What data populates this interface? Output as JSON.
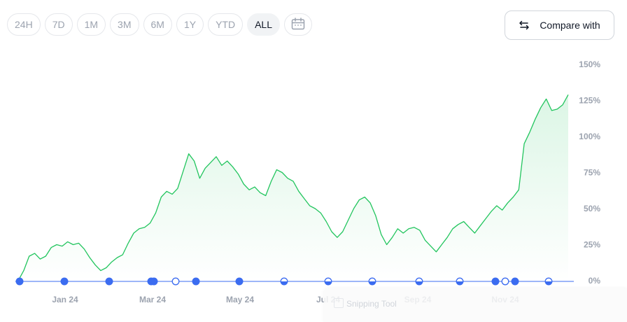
{
  "time_ranges": [
    "24H",
    "7D",
    "1M",
    "3M",
    "6M",
    "1Y",
    "YTD",
    "ALL"
  ],
  "active_range": "ALL",
  "compare_button": {
    "label": "Compare with",
    "icon": "swap-arrows-icon"
  },
  "calendar_button": {
    "icon": "calendar-icon"
  },
  "overlay": {
    "label": "Snipping Tool",
    "icon": "snipping-tool-icon"
  },
  "colors": {
    "line": "#22c55e",
    "fill": "#22c55e",
    "marker": "#3b6cf0",
    "baseline": "#3b6cf0",
    "axis_text": "#9ca3af"
  },
  "chart_data": {
    "type": "area",
    "x_ticks": [
      "Jan 24",
      "Mar 24",
      "May 24",
      "Jul 24",
      "Sep 24",
      "Nov 24"
    ],
    "y_ticks": [
      "0%",
      "25%",
      "50%",
      "75%",
      "100%",
      "125%",
      "150%"
    ],
    "ylim": [
      0,
      150
    ],
    "y_unit": "%",
    "grid": false,
    "series": [
      {
        "values": [
          0,
          7,
          17,
          19,
          15,
          17,
          23,
          25,
          24,
          27,
          25,
          26,
          22,
          16,
          11,
          7,
          9,
          13,
          16,
          18,
          26,
          33,
          36,
          37,
          40,
          47,
          58,
          62,
          60,
          64,
          76,
          88,
          83,
          71,
          78,
          82,
          86,
          80,
          83,
          79,
          74,
          67,
          63,
          65,
          61,
          59,
          69,
          77,
          75,
          71,
          69,
          62,
          57,
          52,
          50,
          47,
          41,
          34,
          30,
          34,
          42,
          50,
          56,
          58,
          54,
          45,
          32,
          25,
          30,
          36,
          33,
          36,
          37,
          35,
          28,
          24,
          20,
          25,
          30,
          36,
          39,
          41,
          37,
          33,
          38,
          43,
          48,
          52,
          49,
          54,
          58,
          63,
          95,
          103,
          112,
          120,
          126,
          118,
          119,
          122,
          129
        ]
      }
    ],
    "events": [
      {
        "date_label": "Dec 24 2023",
        "style": "filled"
      },
      {
        "date_label": "Jan 24",
        "style": "filled"
      },
      {
        "date_label": "Feb 24",
        "style": "filled"
      },
      {
        "date_label": "Mar 1 24",
        "style": "filled"
      },
      {
        "date_label": "Mar 3 24",
        "style": "filled"
      },
      {
        "date_label": "Mar 24",
        "style": "hollow"
      },
      {
        "date_label": "Apr 24",
        "style": "filled"
      },
      {
        "date_label": "May 24",
        "style": "filled"
      },
      {
        "date_label": "Jun 24",
        "style": "half"
      },
      {
        "date_label": "Jul 24",
        "style": "half"
      },
      {
        "date_label": "Aug 24",
        "style": "half"
      },
      {
        "date_label": "Sep 24",
        "style": "half"
      },
      {
        "date_label": "Oct 24",
        "style": "half"
      },
      {
        "date_label": "Nov 1 24",
        "style": "filled"
      },
      {
        "date_label": "Nov 10 24",
        "style": "hollow"
      },
      {
        "date_label": "Nov 16 24",
        "style": "filled"
      },
      {
        "date_label": "Dec 24",
        "style": "half"
      }
    ]
  }
}
